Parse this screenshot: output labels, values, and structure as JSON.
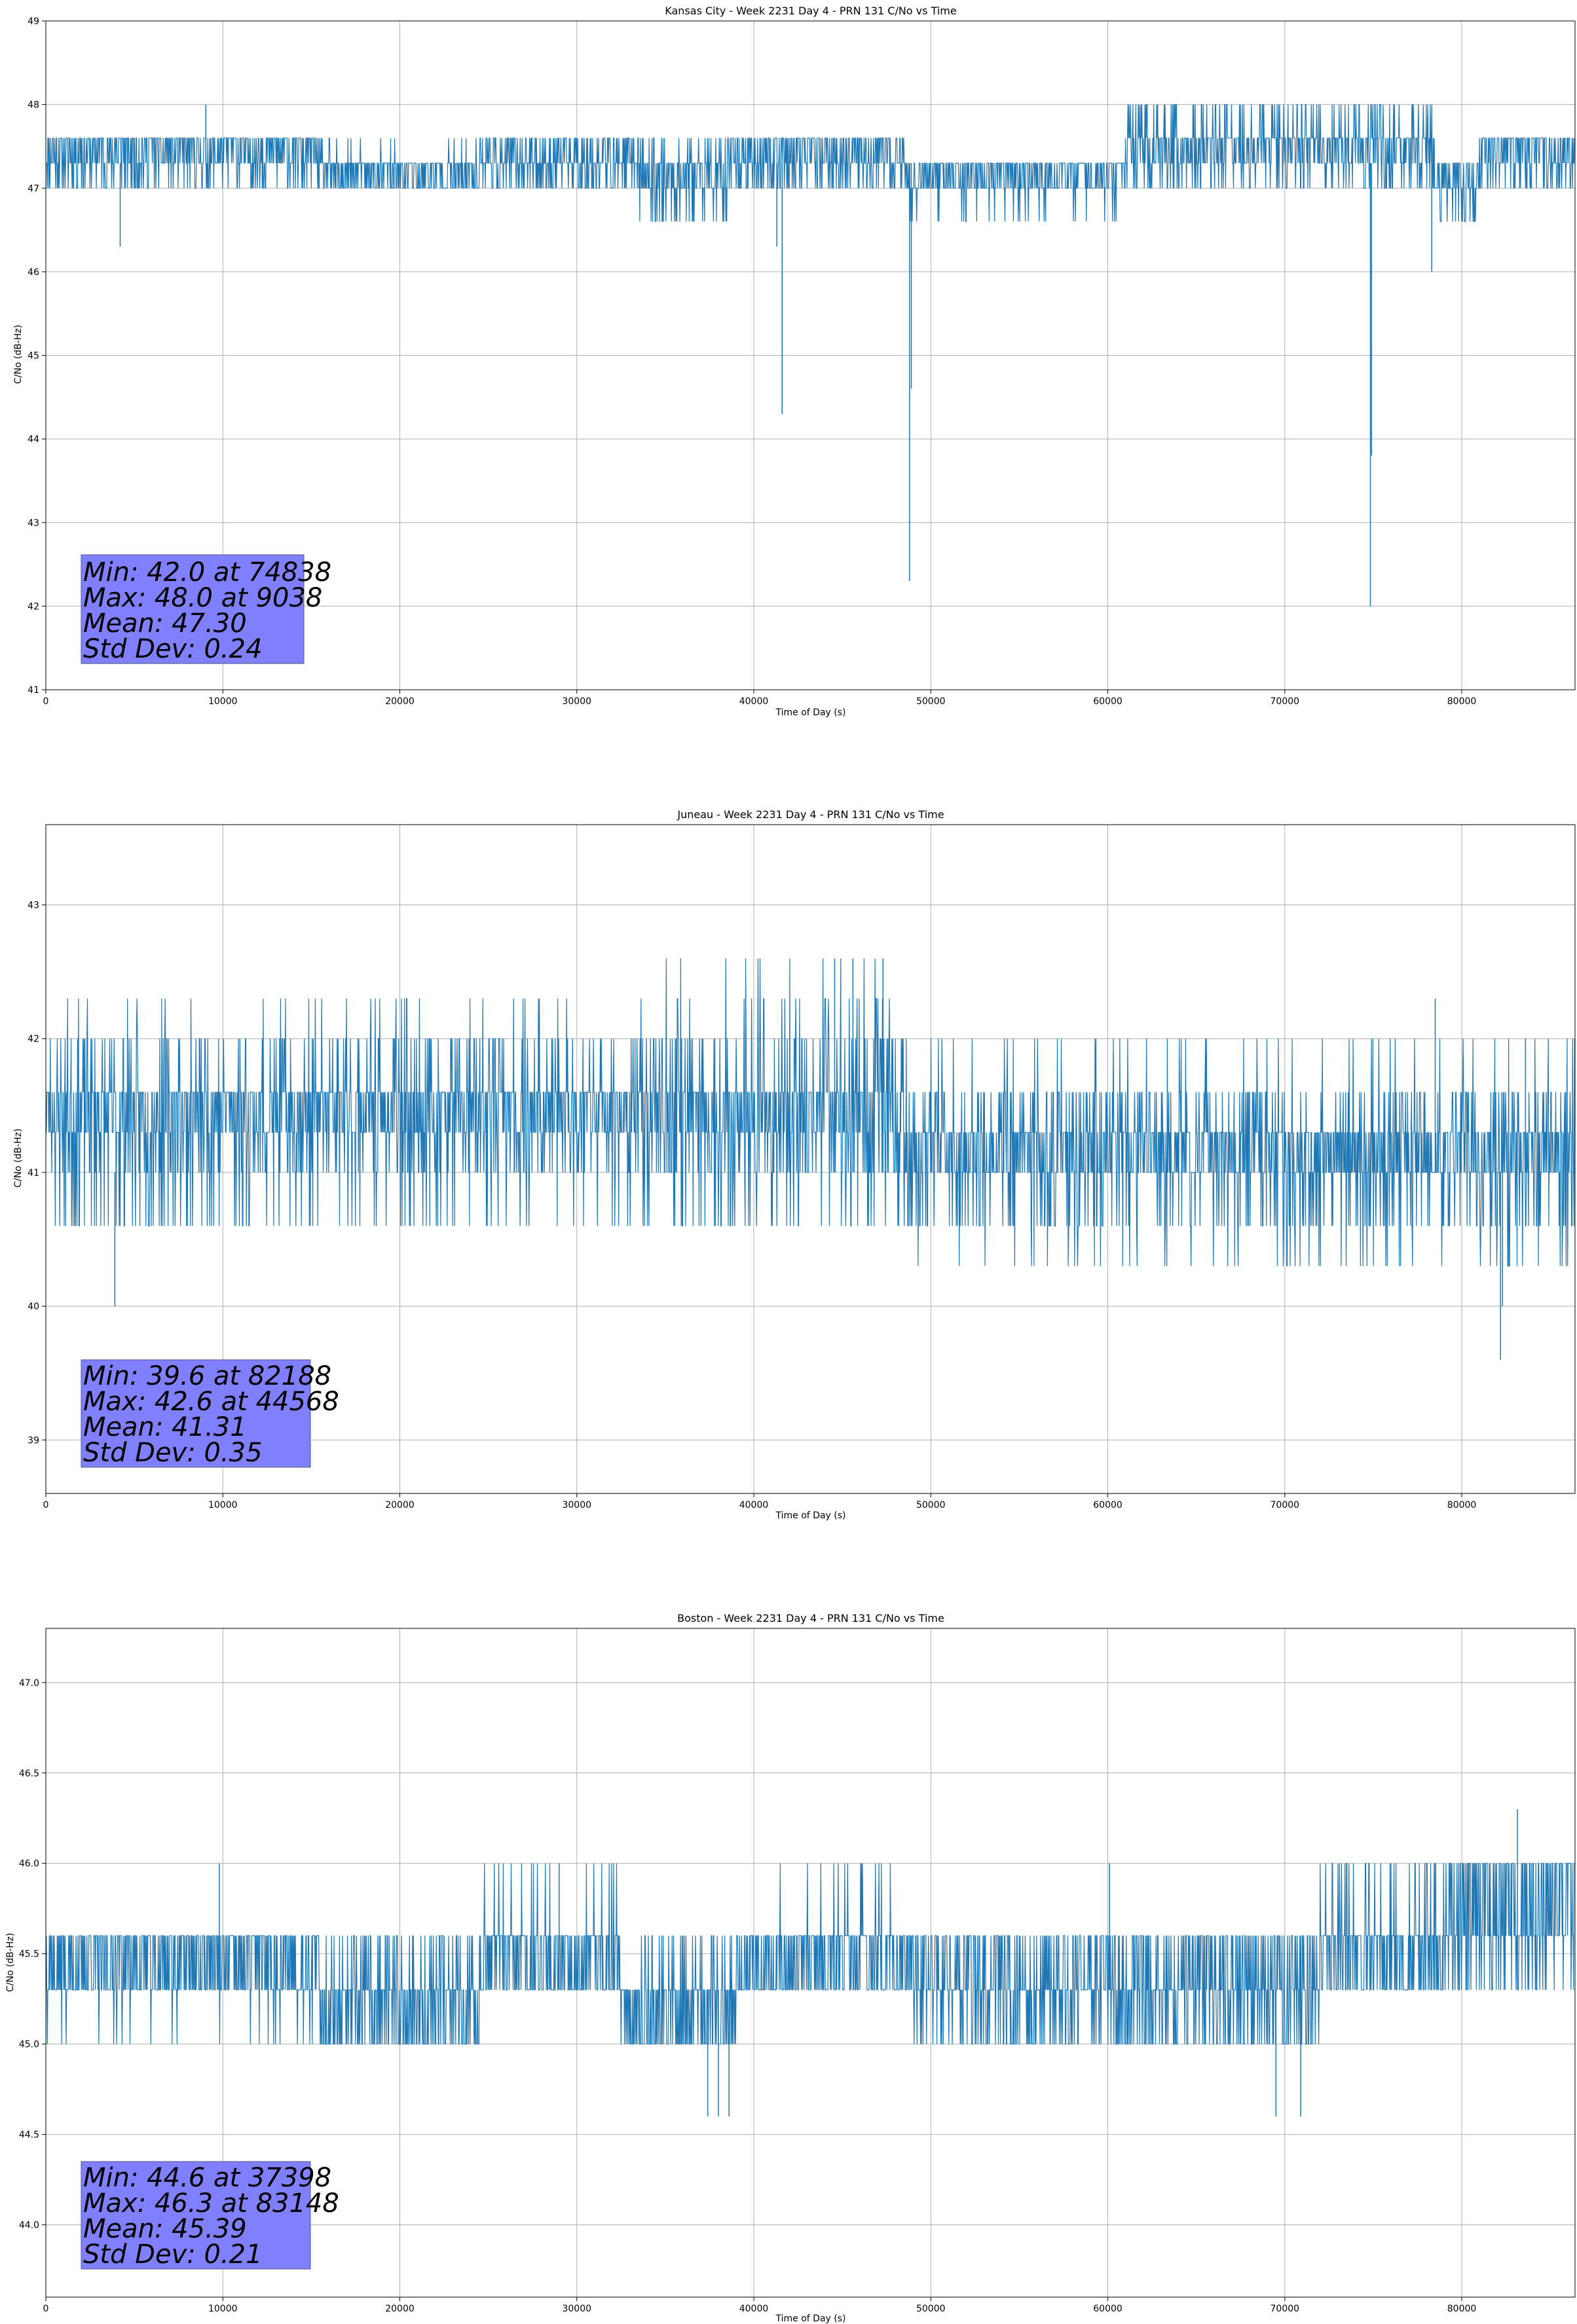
{
  "colors": {
    "line": "#1f77b4",
    "grid": "#b0b0b0",
    "statbox": "#8080ff"
  },
  "chart_data": [
    {
      "type": "line",
      "title": "Kansas City - Week 2231 Day 4 - PRN 131 C/No vs Time",
      "xlabel": "Time of Day (s)",
      "ylabel": "C/No (dB-Hz)",
      "xlim": [
        0,
        86400
      ],
      "ylim": [
        41,
        49
      ],
      "grid": true,
      "xticks": [
        0,
        10000,
        20000,
        30000,
        40000,
        50000,
        60000,
        70000,
        80000
      ],
      "yticks": [
        41,
        42,
        43,
        44,
        45,
        46,
        47,
        48,
        49
      ],
      "yticklabels": [
        "41",
        "42",
        "43",
        "44",
        "45",
        "46",
        "47",
        "48",
        "49"
      ],
      "seed": 11,
      "segments": [
        {
          "x": [
            0,
            15500
          ],
          "levels": [
            47.0,
            47.3,
            47.6
          ],
          "weights": [
            0.2,
            0.3,
            0.5
          ]
        },
        {
          "x": [
            15500,
            24500
          ],
          "levels": [
            47.0,
            47.3,
            47.6
          ],
          "weights": [
            0.45,
            0.5,
            0.05
          ]
        },
        {
          "x": [
            24500,
            33500
          ],
          "levels": [
            47.0,
            47.3,
            47.6
          ],
          "weights": [
            0.25,
            0.4,
            0.35
          ]
        },
        {
          "x": [
            33500,
            38500
          ],
          "levels": [
            46.6,
            47.0,
            47.3,
            47.6
          ],
          "weights": [
            0.15,
            0.35,
            0.35,
            0.15
          ]
        },
        {
          "x": [
            38500,
            48500
          ],
          "levels": [
            47.0,
            47.3,
            47.6
          ],
          "weights": [
            0.25,
            0.35,
            0.4
          ]
        },
        {
          "x": [
            48500,
            61000
          ],
          "levels": [
            46.6,
            47.0,
            47.3
          ],
          "weights": [
            0.05,
            0.45,
            0.5
          ]
        },
        {
          "x": [
            61000,
            78500
          ],
          "levels": [
            47.0,
            47.3,
            47.6,
            48.0
          ],
          "weights": [
            0.15,
            0.3,
            0.4,
            0.15
          ]
        },
        {
          "x": [
            78500,
            81000
          ],
          "levels": [
            46.6,
            47.0,
            47.3
          ],
          "weights": [
            0.2,
            0.4,
            0.4
          ]
        },
        {
          "x": [
            81000,
            86400
          ],
          "levels": [
            47.0,
            47.3,
            47.6
          ],
          "weights": [
            0.2,
            0.3,
            0.5
          ]
        }
      ],
      "spikes": [
        [
          4200,
          46.3
        ],
        [
          41300,
          46.3
        ],
        [
          41600,
          44.3
        ],
        [
          48800,
          42.3
        ],
        [
          48900,
          44.6
        ],
        [
          74838,
          42.0
        ],
        [
          74900,
          43.8
        ],
        [
          78300,
          46.0
        ],
        [
          9038,
          48.0
        ]
      ],
      "stats": {
        "min": "Min: 42.0 at 74838",
        "max": "Max: 48.0 at 9038",
        "mean": "Mean: 47.30",
        "std": "Std Dev: 0.24"
      }
    },
    {
      "type": "line",
      "title": "Juneau - Week 2231 Day 4 - PRN 131 C/No vs Time",
      "xlabel": "Time of Day (s)",
      "ylabel": "C/No (dB-Hz)",
      "xlim": [
        0,
        86400
      ],
      "ylim": [
        38.6,
        43.6
      ],
      "grid": true,
      "xticks": [
        0,
        10000,
        20000,
        30000,
        40000,
        50000,
        60000,
        70000,
        80000
      ],
      "yticks": [
        39,
        40,
        41,
        42,
        43
      ],
      "yticklabels": [
        "39",
        "40",
        "41",
        "42",
        "43"
      ],
      "seed": 23,
      "segments": [
        {
          "x": [
            0,
            12000
          ],
          "levels": [
            40.6,
            41.0,
            41.3,
            41.6,
            42.0,
            42.3
          ],
          "weights": [
            0.08,
            0.12,
            0.3,
            0.35,
            0.12,
            0.03
          ]
        },
        {
          "x": [
            12000,
            35000
          ],
          "levels": [
            40.6,
            41.0,
            41.3,
            41.6,
            42.0,
            42.3
          ],
          "weights": [
            0.06,
            0.14,
            0.3,
            0.36,
            0.1,
            0.04
          ]
        },
        {
          "x": [
            35000,
            48500
          ],
          "levels": [
            40.6,
            41.0,
            41.3,
            41.6,
            42.0,
            42.3,
            42.6
          ],
          "weights": [
            0.08,
            0.15,
            0.28,
            0.3,
            0.12,
            0.05,
            0.02
          ]
        },
        {
          "x": [
            48500,
            86400
          ],
          "levels": [
            40.3,
            40.6,
            41.0,
            41.3,
            41.6,
            42.0
          ],
          "weights": [
            0.04,
            0.12,
            0.32,
            0.32,
            0.16,
            0.04
          ]
        }
      ],
      "spikes": [
        [
          3900,
          40.0
        ],
        [
          82188,
          39.6
        ],
        [
          82300,
          40.0
        ],
        [
          44568,
          42.6
        ],
        [
          45600,
          42.6
        ],
        [
          47300,
          42.6
        ],
        [
          78500,
          42.3
        ],
        [
          83600,
          42.0
        ]
      ],
      "stats": {
        "min": "Min: 39.6 at 82188",
        "max": "Max: 42.6 at 44568",
        "mean": "Mean: 41.31",
        "std": "Std Dev: 0.35"
      }
    },
    {
      "type": "line",
      "title": "Boston - Week 2231 Day 4 - PRN 131 C/No vs Time",
      "xlabel": "Time of Day (s)",
      "ylabel": "C/No (dB-Hz)",
      "xlim": [
        0,
        86400
      ],
      "ylim": [
        43.6,
        47.3
      ],
      "grid": true,
      "xticks": [
        0,
        10000,
        20000,
        30000,
        40000,
        50000,
        60000,
        70000,
        80000
      ],
      "yticks": [
        44.0,
        44.5,
        45.0,
        45.5,
        46.0,
        46.5,
        47.0
      ],
      "yticklabels": [
        "44.0",
        "44.5",
        "45.0",
        "45.5",
        "46.0",
        "46.5",
        "47.0"
      ],
      "seed": 37,
      "segments": [
        {
          "x": [
            0,
            15500
          ],
          "levels": [
            45.0,
            45.3,
            45.6
          ],
          "weights": [
            0.04,
            0.46,
            0.5
          ]
        },
        {
          "x": [
            15500,
            24500
          ],
          "levels": [
            45.0,
            45.3,
            45.6
          ],
          "weights": [
            0.4,
            0.45,
            0.15
          ]
        },
        {
          "x": [
            24500,
            32500
          ],
          "levels": [
            45.3,
            45.6,
            46.0
          ],
          "weights": [
            0.45,
            0.5,
            0.05
          ]
        },
        {
          "x": [
            32500,
            39000
          ],
          "levels": [
            45.0,
            45.3,
            45.6
          ],
          "weights": [
            0.45,
            0.4,
            0.15
          ]
        },
        {
          "x": [
            39000,
            49000
          ],
          "levels": [
            45.3,
            45.6,
            46.0
          ],
          "weights": [
            0.45,
            0.5,
            0.05
          ]
        },
        {
          "x": [
            49000,
            72000
          ],
          "levels": [
            45.0,
            45.3,
            45.6
          ],
          "weights": [
            0.25,
            0.4,
            0.35
          ]
        },
        {
          "x": [
            72000,
            79000
          ],
          "levels": [
            45.3,
            45.6,
            46.0
          ],
          "weights": [
            0.4,
            0.45,
            0.15
          ]
        },
        {
          "x": [
            79000,
            86400
          ],
          "levels": [
            45.3,
            45.6,
            46.0
          ],
          "weights": [
            0.15,
            0.4,
            0.45
          ]
        }
      ],
      "spikes": [
        [
          37398,
          44.6
        ],
        [
          38000,
          44.6
        ],
        [
          38600,
          44.6
        ],
        [
          69500,
          44.6
        ],
        [
          70900,
          44.6
        ],
        [
          83148,
          46.3
        ],
        [
          9800,
          46.0
        ],
        [
          29000,
          46.0
        ],
        [
          60100,
          46.0
        ]
      ],
      "stats": {
        "min": "Min: 44.6 at 37398",
        "max": "Max: 46.3 at 83148",
        "mean": "Mean: 45.39",
        "std": "Std Dev: 0.21"
      }
    }
  ]
}
